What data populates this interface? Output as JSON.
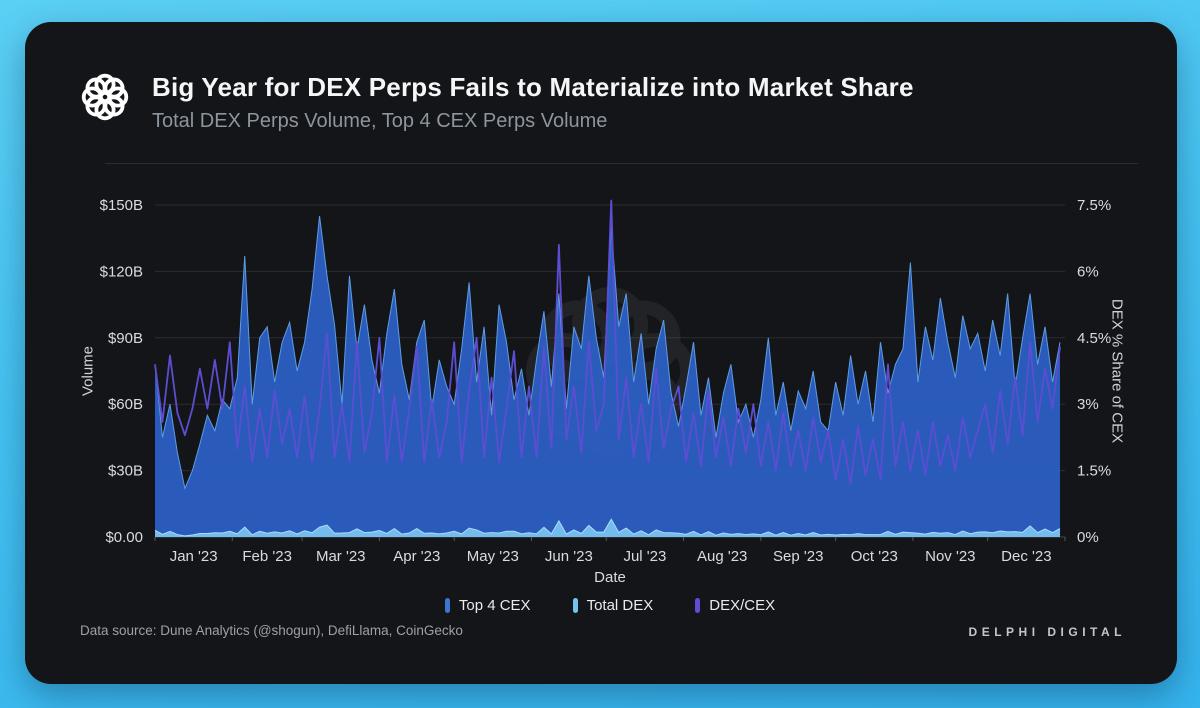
{
  "header": {
    "title": "Big Year for DEX Perps Fails to Materialize into Market Share",
    "subtitle": "Total DEX Perps Volume, Top 4 CEX Perps Volume"
  },
  "footer": {
    "data_source": "Data source: Dune Analytics (@shogun), DefiLlama, CoinGecko",
    "brand": "DELPHI DIGITAL"
  },
  "colors": {
    "background_gradient_top": "#5bd0f5",
    "background_gradient_bottom": "#35b4ee",
    "card": "#141518",
    "gridline": "#2b2d30",
    "top4cex_fill": "#2c5fc2",
    "top4cex_stroke": "#5e9ce2",
    "totaldex_fill": "#78c1ee",
    "totaldex_stroke": "#aadcf8",
    "dexcex_line": "#5b4ed2"
  },
  "chart_data": {
    "type": "area",
    "title": "Big Year for DEX Perps Fails to Materialize into Market Share",
    "subtitle": "Total DEX Perps Volume, Top 4 CEX Perps Volume",
    "xlabel": "Date",
    "x_tick_labels": [
      "Jan '23",
      "Feb '23",
      "Mar '23",
      "Apr '23",
      "May '23",
      "Jun '23",
      "Jul '23",
      "Aug '23",
      "Sep '23",
      "Oct '23",
      "Nov '23",
      "Dec '23"
    ],
    "month_days": [
      31,
      28,
      31,
      30,
      31,
      30,
      31,
      31,
      30,
      31,
      30,
      31
    ],
    "sample_interval_days": 3,
    "grid": true,
    "legend_position": "bottom",
    "left_axis": {
      "label": "Volume",
      "ticks": [
        "$0.00",
        "$30B",
        "$60B",
        "$90B",
        "$120B",
        "$150B"
      ],
      "tick_values": [
        0,
        30,
        60,
        90,
        120,
        150
      ],
      "max": 150
    },
    "right_axis": {
      "label": "DEX % Share of CEX",
      "ticks": [
        "0%",
        "1.5%",
        "3%",
        "4.5%",
        "6%",
        "7.5%"
      ],
      "tick_values": [
        0,
        1.5,
        3,
        4.5,
        6,
        7.5
      ],
      "max": 7.5
    },
    "legend": [
      {
        "label": "Top 4 CEX",
        "color": "#3b76d2"
      },
      {
        "label": "Total DEX",
        "color": "#74c3ef"
      },
      {
        "label": "DEX/CEX",
        "color": "#5b4ed2"
      }
    ],
    "series": [
      {
        "name": "Top 4 CEX",
        "type": "area",
        "axis": "left",
        "unit": "$B",
        "fill": "#2c5fc2",
        "stroke": "#5e9ce2",
        "values": [
          78,
          45,
          60,
          38,
          22,
          30,
          42,
          55,
          48,
          62,
          58,
          72,
          127,
          60,
          90,
          95,
          70,
          88,
          97,
          75,
          88,
          112,
          145,
          118,
          96,
          60,
          118,
          85,
          105,
          80,
          65,
          92,
          112,
          78,
          62,
          88,
          98,
          58,
          80,
          68,
          60,
          85,
          115,
          70,
          95,
          55,
          105,
          88,
          62,
          76,
          55,
          80,
          102,
          68,
          110,
          58,
          95,
          85,
          118,
          90,
          72,
          140,
          95,
          110,
          70,
          92,
          60,
          85,
          98,
          65,
          50,
          68,
          88,
          55,
          72,
          45,
          65,
          78,
          52,
          60,
          45,
          62,
          90,
          55,
          70,
          48,
          66,
          58,
          75,
          52,
          48,
          70,
          55,
          82,
          60,
          75,
          52,
          88,
          65,
          78,
          85,
          124,
          70,
          95,
          80,
          108,
          88,
          72,
          100,
          85,
          92,
          75,
          98,
          82,
          110,
          68,
          90,
          110,
          78,
          95,
          70,
          88
        ]
      },
      {
        "name": "Total DEX",
        "type": "area",
        "axis": "left",
        "unit": "$B",
        "fill": "#78c1ee",
        "stroke": "#aadcf8",
        "values": [
          3.0,
          1.2,
          2.5,
          1.1,
          0.5,
          0.9,
          1.6,
          1.6,
          1.9,
          1.8,
          2.6,
          1.4,
          4.5,
          1.0,
          2.6,
          1.7,
          2.3,
          1.8,
          2.8,
          1.4,
          2.8,
          1.9,
          4.4,
          5.4,
          1.7,
          1.8,
          2.0,
          3.7,
          2.0,
          2.2,
          2.9,
          1.6,
          3.8,
          1.3,
          1.8,
          3.8,
          1.7,
          1.8,
          1.4,
          1.8,
          2.6,
          1.4,
          4.0,
          3.2,
          1.7,
          2.0,
          1.8,
          2.6,
          2.6,
          1.4,
          1.9,
          1.4,
          4.4,
          1.4,
          7.3,
          1.3,
          3.2,
          1.6,
          5.2,
          2.2,
          2.2,
          8.0,
          2.1,
          4.0,
          1.3,
          2.8,
          1.0,
          3.2,
          2.0,
          1.9,
          1.7,
          1.2,
          2.5,
          0.9,
          2.4,
          0.8,
          1.8,
          1.2,
          1.5,
          1.1,
          1.4,
          1.0,
          2.3,
          0.8,
          2.0,
          0.8,
          1.6,
          0.9,
          2.0,
          0.9,
          1.2,
          0.9,
          1.2,
          1.0,
          1.5,
          1.1,
          1.1,
          1.1,
          2.5,
          1.2,
          2.2,
          2.0,
          1.7,
          1.3,
          2.1,
          1.7,
          2.0,
          1.1,
          2.7,
          1.5,
          2.2,
          2.3,
          1.9,
          2.7,
          2.3,
          2.4,
          2.1,
          5.0,
          2.0,
          3.6,
          2.0,
          3.8
        ]
      },
      {
        "name": "DEX/CEX",
        "type": "line",
        "axis": "right",
        "unit": "%",
        "stroke": "#5b4ed2",
        "values": [
          3.9,
          2.6,
          4.1,
          2.8,
          2.3,
          2.9,
          3.8,
          2.9,
          4.0,
          2.9,
          4.4,
          2.0,
          3.4,
          1.7,
          2.9,
          1.8,
          3.3,
          2.1,
          2.9,
          1.8,
          3.2,
          1.7,
          2.9,
          4.6,
          1.8,
          3.0,
          1.7,
          4.4,
          1.9,
          2.8,
          4.5,
          1.7,
          3.2,
          1.7,
          2.9,
          4.3,
          1.7,
          3.1,
          1.8,
          2.6,
          4.4,
          1.7,
          3.3,
          4.5,
          1.8,
          3.6,
          1.7,
          2.9,
          4.2,
          1.8,
          3.4,
          1.8,
          4.3,
          2.0,
          6.6,
          2.2,
          3.4,
          1.9,
          4.4,
          2.4,
          3.0,
          7.6,
          2.2,
          3.6,
          1.8,
          3.0,
          1.7,
          3.8,
          2.0,
          2.9,
          3.4,
          1.7,
          2.8,
          1.6,
          3.3,
          1.8,
          2.7,
          1.6,
          2.9,
          1.9,
          3.0,
          1.6,
          2.6,
          1.5,
          2.8,
          1.6,
          2.4,
          1.5,
          2.7,
          1.7,
          2.4,
          1.3,
          2.2,
          1.2,
          2.5,
          1.4,
          2.2,
          1.3,
          3.9,
          1.6,
          2.6,
          1.5,
          2.4,
          1.4,
          2.6,
          1.6,
          2.3,
          1.5,
          2.7,
          1.8,
          2.4,
          3.0,
          1.9,
          3.3,
          2.1,
          3.6,
          2.3,
          4.4,
          2.6,
          3.8,
          2.9,
          4.3
        ]
      }
    ]
  }
}
